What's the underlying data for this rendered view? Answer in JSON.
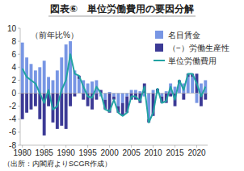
{
  "chart_data": {
    "type": "bar",
    "title": "図表⑥　単位労働費用の要因分解",
    "ylabel": "（前年比%）",
    "source": "（出所：内閣府よりSCGR作成）",
    "stacked": true,
    "grid": false,
    "legend": "upper right",
    "x": [
      1980,
      1981,
      1982,
      1983,
      1984,
      1985,
      1986,
      1987,
      1988,
      1989,
      1990,
      1991,
      1992,
      1993,
      1994,
      1995,
      1996,
      1997,
      1998,
      1999,
      2000,
      2001,
      2002,
      2003,
      2004,
      2005,
      2006,
      2007,
      2008,
      2009,
      2010,
      2011,
      2012,
      2013,
      2014,
      2015,
      2016,
      2017,
      2018,
      2019,
      2020,
      2021,
      2022
    ],
    "xlim": [
      1979.5,
      2022.5
    ],
    "xticks": [
      1980,
      1985,
      1990,
      1995,
      2000,
      2005,
      2010,
      2015,
      2020
    ],
    "ylim": [
      -8,
      10
    ],
    "yticks": [
      -8,
      -6,
      -4,
      -2,
      0,
      2,
      4,
      6,
      8,
      10
    ],
    "series": [
      {
        "name": "名目賃金",
        "type": "bar",
        "color": "#7896e4",
        "values": [
          7.8,
          5.5,
          4.5,
          3.5,
          4.0,
          5.0,
          2.5,
          2.0,
          3.5,
          5.5,
          7.5,
          8.0,
          3.5,
          2.2,
          2.0,
          1.5,
          1.8,
          2.0,
          -0.5,
          -1.0,
          0.2,
          -0.5,
          -2.0,
          -1.5,
          -0.5,
          0.5,
          0.5,
          0.3,
          -0.5,
          -4.0,
          0.5,
          0.2,
          -0.5,
          0.3,
          1.5,
          1.0,
          1.5,
          1.5,
          2.5,
          2.5,
          -1.5,
          1.5,
          2.0
        ]
      },
      {
        "name": "（−）労働生産性",
        "type": "bar",
        "color": "#3c3a96",
        "values": [
          -4.0,
          -3.0,
          -2.5,
          -2.0,
          -4.0,
          -6.5,
          -2.0,
          -4.5,
          -5.5,
          -5.0,
          -5.5,
          -2.0,
          -0.5,
          0.5,
          -1.0,
          -2.0,
          -2.5,
          -1.0,
          0.5,
          -1.5,
          -3.0,
          -0.5,
          -1.0,
          -2.0,
          -2.5,
          -1.0,
          -1.0,
          -1.5,
          1.5,
          -0.5,
          -3.5,
          0.5,
          -1.0,
          -1.5,
          -0.5,
          -2.0,
          0.5,
          -1.0,
          0.5,
          0.5,
          3.0,
          -2.0,
          -1.0
        ]
      },
      {
        "name": "単位労働費用",
        "type": "line",
        "color": "#22a3a3",
        "values": [
          3.8,
          2.5,
          2.0,
          1.5,
          0.0,
          -1.5,
          0.5,
          -2.5,
          -2.0,
          0.5,
          2.0,
          6.0,
          3.0,
          2.7,
          1.0,
          -0.5,
          -0.7,
          1.0,
          0.0,
          -2.5,
          -2.8,
          -1.0,
          -3.0,
          -3.5,
          -3.0,
          -0.5,
          -0.5,
          -1.2,
          1.0,
          -4.5,
          -3.0,
          0.7,
          -1.5,
          -1.2,
          1.0,
          -1.0,
          2.0,
          0.5,
          3.0,
          3.0,
          1.5,
          -0.5,
          1.0
        ]
      }
    ]
  }
}
